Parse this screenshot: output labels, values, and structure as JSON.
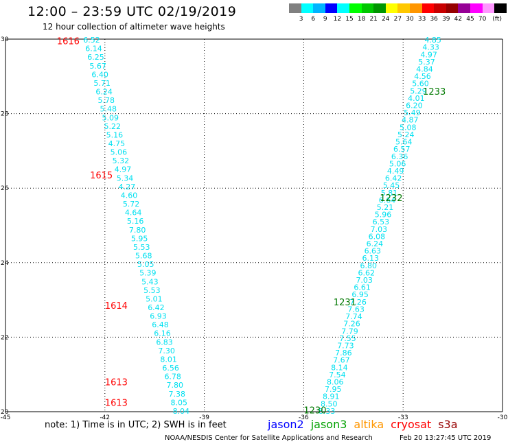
{
  "title": "12:00 – 23:59 UTC 02/19/2019",
  "subtitle": "12 hour collection of altimeter wave heights",
  "legend": {
    "colors": [
      "#808080",
      "#00ffff",
      "#00b4ff",
      "#0000ff",
      "#00ffff",
      "#00ff00",
      "#00c800",
      "#009600",
      "#ffff00",
      "#ffc800",
      "#ff9600",
      "#ff0000",
      "#c80000",
      "#960000",
      "#960096",
      "#ff00ff",
      "#ff96ff",
      "#000000"
    ],
    "labels": [
      "3",
      "6",
      "9",
      "12",
      "15",
      "18",
      "21",
      "24",
      "27",
      "30",
      "33",
      "36",
      "39",
      "42",
      "45",
      "70",
      "(ft)"
    ]
  },
  "chart_data": {
    "type": "scatter",
    "xlim": [
      -45,
      -30
    ],
    "ylim": [
      20,
      30
    ],
    "x_ticks": [
      "-45",
      "-42",
      "-39",
      "-36",
      "-33",
      "-30"
    ],
    "y_ticks": [
      "30",
      "28",
      "26",
      "24",
      "22",
      "20"
    ],
    "grid": true,
    "units": "ft",
    "tracks": [
      {
        "name": "left-track",
        "x_start": -42.4,
        "x_end": -39.7,
        "values": [
          "6.52",
          "6.14",
          "6.25",
          "5.67",
          "6.40",
          "5.71",
          "6.24",
          "5.78",
          "5.48",
          "5.09",
          "5.22",
          "5.16",
          "4.75",
          "5.06",
          "5.32",
          "4.97",
          "5.34",
          "4.27",
          "4.60",
          "5.72",
          "4.64",
          "5.16",
          "7.80",
          "5.95",
          "5.53",
          "5.68",
          "5.05",
          "5.39",
          "5.43",
          "5.53",
          "5.01",
          "6.42",
          "6.93",
          "6.48",
          "6.16",
          "6.83",
          "7.30",
          "8.01",
          "6.56",
          "6.78",
          "7.80",
          "7.38",
          "8.05",
          "8.04"
        ]
      },
      {
        "name": "right-track",
        "x_start": -32.1,
        "x_end": -35.3,
        "values": [
          "4.85",
          "4.33",
          "4.97",
          "5.37",
          "4.84",
          "4.56",
          "5.60",
          "5.29",
          "4.01",
          "6.20",
          "5.49",
          "4.87",
          "5.08",
          "5.24",
          "5.64",
          "6.57",
          "6.36",
          "5.06",
          "4.49",
          "6.42",
          "5.45",
          "5.81",
          "6.64",
          "5.21",
          "5.96",
          "6.53",
          "7.03",
          "6.08",
          "6.24",
          "6.63",
          "6.13",
          "6.80",
          "6.62",
          "7.03",
          "6.61",
          "6.95",
          "7.26",
          "7.63",
          "7.74",
          "7.26",
          "7.79",
          "7.55",
          "7.73",
          "7.86",
          "7.67",
          "8.14",
          "7.54",
          "8.06",
          "7.95",
          "8.91",
          "8.50",
          "8.33"
        ]
      }
    ],
    "time_labels": [
      {
        "text": "1616",
        "lat": 29.95,
        "lon": -43.45,
        "color": "#ff0000"
      },
      {
        "text": "1615",
        "lat": 26.35,
        "lon": -42.45,
        "color": "#ff0000"
      },
      {
        "text": "1614",
        "lat": 22.85,
        "lon": -42.0,
        "color": "#ff0000"
      },
      {
        "text": "1613",
        "lat": 20.8,
        "lon": -42.0,
        "color": "#ff0000"
      },
      {
        "text": "1613",
        "lat": 20.25,
        "lon": -42.0,
        "color": "#ff0000"
      },
      {
        "text": "1233",
        "lat": 28.6,
        "lon": -32.4,
        "color": "#007800"
      },
      {
        "text": "1232",
        "lat": 25.75,
        "lon": -33.7,
        "color": "#007800"
      },
      {
        "text": "1231",
        "lat": 22.95,
        "lon": -35.1,
        "color": "#007800"
      },
      {
        "text": "1230",
        "lat": 20.05,
        "lon": -36.0,
        "color": "#007800"
      }
    ]
  },
  "note": "note: 1) Time is in UTC; 2) SWH is in feet",
  "satellites": [
    {
      "name": "jason2",
      "color": "#0000ff"
    },
    {
      "name": "jason3",
      "color": "#00a000"
    },
    {
      "name": "altika",
      "color": "#ff9600"
    },
    {
      "name": "cryosat",
      "color": "#ff0000"
    },
    {
      "name": "s3a",
      "color": "#960000"
    }
  ],
  "credit": "NOAA/NESDIS Center for Satellite Applications and Research",
  "timestamp": "Feb 20 13:27:45 UTC 2019"
}
